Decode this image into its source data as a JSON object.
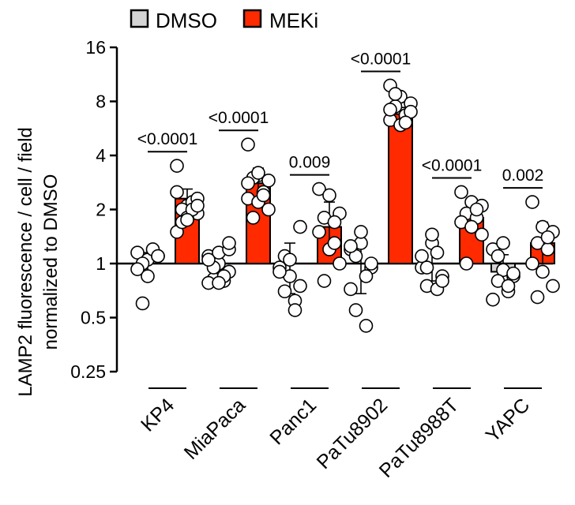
{
  "chart_data": {
    "type": "bar",
    "scale": "log2",
    "ylabel_line1": "LAMP2 fluorescence / cell / field",
    "ylabel_line2": "normalized to DMSO",
    "ylim": [
      0.25,
      16
    ],
    "yticks": [
      {
        "value": 16,
        "label": "16"
      },
      {
        "value": 8,
        "label": "8"
      },
      {
        "value": 4,
        "label": "4"
      },
      {
        "value": 2,
        "label": "2"
      },
      {
        "value": 1,
        "label": "1"
      },
      {
        "value": 0.5,
        "label": "0.5"
      },
      {
        "value": 0.25,
        "label": "0.25"
      }
    ],
    "legend": {
      "position": "top",
      "entries": [
        {
          "label": "DMSO",
          "color": "#d4d4d4"
        },
        {
          "label": "MEKi",
          "color": "#ff2a00"
        }
      ]
    },
    "categories": [
      "KP4",
      "MiaPaca",
      "Panc1",
      "PaTu8902",
      "PaTu8988T",
      "YAPC"
    ],
    "series": [
      {
        "name": "DMSO",
        "color": "#d4d4d4",
        "values": [
          1.0,
          1.0,
          1.0,
          1.0,
          1.0,
          0.9
        ],
        "error_high": [
          1.15,
          1.2,
          1.3,
          1.35,
          1.25,
          1.12
        ],
        "error_low": [
          0.88,
          0.85,
          0.68,
          0.68,
          0.8,
          0.75
        ],
        "points": [
          [
            1.15,
            1.05,
            1.1,
            1.0,
            1.2,
            0.93,
            0.85,
            1.1,
            0.6
          ],
          [
            1.1,
            1.0,
            0.9,
            0.82,
            0.8,
            0.78,
            1.15,
            1.2,
            0.95,
            0.85,
            1.05,
            0.78,
            1.3
          ],
          [
            0.95,
            0.85,
            0.75,
            1.1,
            0.62,
            0.9,
            1.05,
            1.6,
            0.7,
            0.55
          ],
          [
            1.2,
            1.3,
            0.95,
            1.1,
            0.85,
            0.72,
            1.5,
            1.0,
            0.55,
            0.45,
            1.25
          ],
          [
            0.95,
            1.3,
            0.85,
            0.75,
            0.72,
            1.1,
            1.45,
            0.8,
            0.95,
            1.15
          ],
          [
            1.2,
            0.92,
            0.85,
            0.8,
            0.7,
            0.63,
            1.3,
            0.88,
            1.1,
            0.75
          ]
        ]
      },
      {
        "name": "MEKi",
        "color": "#ff2a00",
        "values": [
          2.3,
          2.8,
          1.6,
          6.8,
          1.8,
          1.3
        ],
        "error_high": [
          2.6,
          3.4,
          2.2,
          7.4,
          2.05,
          1.7
        ],
        "error_low": [
          2.0,
          2.3,
          1.2,
          6.2,
          1.6,
          1.0
        ],
        "points": [
          [
            3.5,
            2.1,
            1.9,
            2.0,
            2.2,
            1.5,
            1.8,
            2.3,
            1.7,
            2.0,
            2.5,
            1.75,
            2.1
          ],
          [
            4.6,
            3.1,
            2.9,
            3.0,
            2.5,
            2.3,
            2.2,
            2.0,
            1.8,
            2.4,
            2.8,
            3.2
          ],
          [
            2.6,
            2.4,
            1.9,
            1.8,
            1.7,
            1.5,
            1.2,
            1.0,
            0.8,
            1.3
          ],
          [
            9.8,
            8.5,
            7.8,
            7.5,
            6.7,
            6.3,
            5.9,
            7.0,
            8.8,
            6.1,
            7.2
          ],
          [
            2.5,
            2.2,
            2.1,
            1.9,
            1.8,
            1.7,
            1.6,
            1.45,
            1.0,
            2.0
          ],
          [
            2.2,
            1.6,
            1.5,
            1.3,
            1.2,
            1.0,
            0.9,
            0.75,
            0.65,
            1.4
          ]
        ]
      }
    ],
    "annotations": [
      {
        "category": "KP4",
        "text": "<0.0001"
      },
      {
        "category": "MiaPaca",
        "text": "<0.0001"
      },
      {
        "category": "Panc1",
        "text": "0.009"
      },
      {
        "category": "PaTu8902",
        "text": "<0.0001"
      },
      {
        "category": "PaTu8988T",
        "text": "<0.0001"
      },
      {
        "category": "YAPC",
        "text": "0.002"
      }
    ]
  }
}
